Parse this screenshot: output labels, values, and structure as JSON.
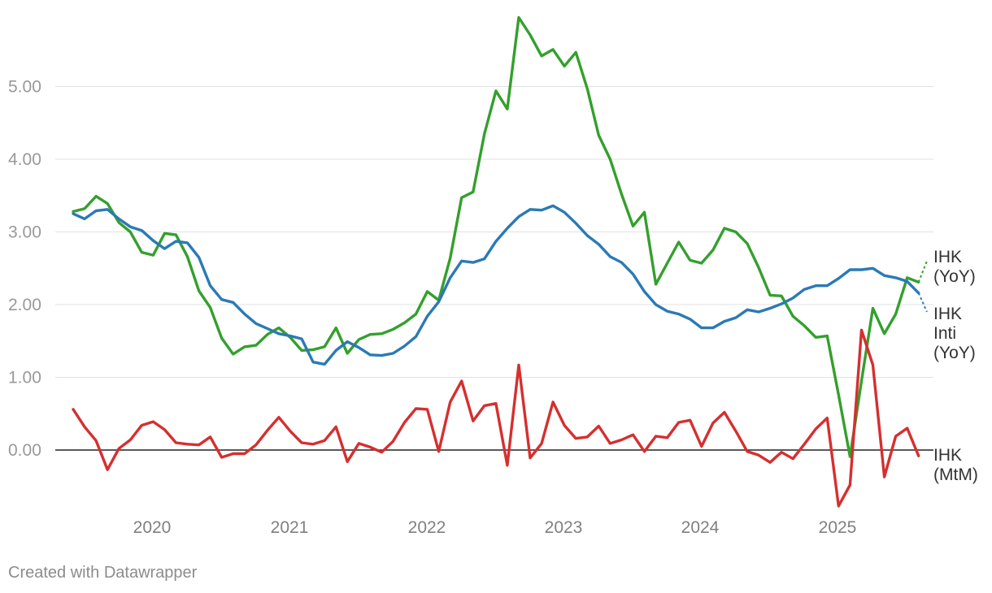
{
  "chart_data": {
    "type": "line",
    "credit": "Created with Datawrapper",
    "y_ticks": [
      "5.00",
      "4.00",
      "3.00",
      "2.00",
      "1.00",
      "0.00"
    ],
    "x_ticks": [
      "2020",
      "2021",
      "2022",
      "2023",
      "2024",
      "2025"
    ],
    "ylim": [
      -0.8,
      5.9
    ],
    "grid": true,
    "legend": "line-end labels on the right",
    "series": [
      {
        "name": "IHK (YoY)",
        "label_lines": [
          "IHK",
          "(YoY)"
        ],
        "color": "#33a02c",
        "projection_end": 2.6,
        "values": [
          3.28,
          3.32,
          3.49,
          3.39,
          3.13,
          3.0,
          2.72,
          2.68,
          2.98,
          2.96,
          2.66,
          2.19,
          1.96,
          1.54,
          1.32,
          1.42,
          1.44,
          1.59,
          1.68,
          1.55,
          1.37,
          1.38,
          1.42,
          1.68,
          1.33,
          1.52,
          1.59,
          1.6,
          1.66,
          1.75,
          1.87,
          2.18,
          2.06,
          2.64,
          3.47,
          3.55,
          4.35,
          4.94,
          4.69,
          5.95,
          5.71,
          5.42,
          5.51,
          5.28,
          5.47,
          4.97,
          4.33,
          4.0,
          3.52,
          3.08,
          3.27,
          2.28,
          2.57,
          2.86,
          2.61,
          2.57,
          2.75,
          3.05,
          3.0,
          2.84,
          2.51,
          2.13,
          2.12,
          1.84,
          1.71,
          1.55,
          1.57,
          0.76,
          -0.09,
          0.95,
          1.95,
          1.6,
          1.87,
          2.37,
          2.31
        ]
      },
      {
        "name": "IHK Inti (YoY)",
        "label_lines": [
          "IHK",
          "Inti",
          "(YoY)"
        ],
        "color": "#2a7ab5",
        "projection_end": 1.9,
        "values": [
          3.25,
          3.18,
          3.29,
          3.31,
          3.18,
          3.07,
          3.02,
          2.88,
          2.77,
          2.87,
          2.85,
          2.65,
          2.26,
          2.07,
          2.03,
          1.87,
          1.74,
          1.67,
          1.6,
          1.57,
          1.53,
          1.21,
          1.18,
          1.37,
          1.49,
          1.41,
          1.31,
          1.3,
          1.33,
          1.43,
          1.56,
          1.84,
          2.04,
          2.37,
          2.6,
          2.58,
          2.63,
          2.87,
          3.05,
          3.21,
          3.31,
          3.3,
          3.36,
          3.27,
          3.12,
          2.95,
          2.83,
          2.66,
          2.58,
          2.42,
          2.18,
          2.0,
          1.91,
          1.87,
          1.8,
          1.68,
          1.68,
          1.77,
          1.82,
          1.93,
          1.9,
          1.95,
          2.01,
          2.09,
          2.21,
          2.26,
          2.26,
          2.36,
          2.48,
          2.48,
          2.5,
          2.4,
          2.37,
          2.32,
          2.16
        ]
      },
      {
        "name": "IHK (MtM)",
        "label_lines": [
          "IHK",
          "(MtM)"
        ],
        "color": "#d62f2f",
        "values": [
          0.56,
          0.32,
          0.13,
          -0.27,
          0.02,
          0.14,
          0.34,
          0.39,
          0.28,
          0.1,
          0.08,
          0.07,
          0.18,
          -0.1,
          -0.05,
          -0.05,
          0.07,
          0.27,
          0.45,
          0.26,
          0.1,
          0.08,
          0.13,
          0.32,
          -0.16,
          0.09,
          0.04,
          -0.03,
          0.12,
          0.38,
          0.57,
          0.56,
          -0.02,
          0.66,
          0.95,
          0.4,
          0.61,
          0.64,
          -0.21,
          1.17,
          -0.11,
          0.09,
          0.66,
          0.34,
          0.16,
          0.18,
          0.33,
          0.09,
          0.14,
          0.21,
          -0.02,
          0.19,
          0.17,
          0.38,
          0.41,
          0.05,
          0.37,
          0.52,
          0.26,
          -0.02,
          -0.07,
          -0.17,
          -0.03,
          -0.12,
          0.08,
          0.29,
          0.44,
          -0.77,
          -0.48,
          1.65,
          1.17,
          -0.37,
          0.19,
          0.3,
          -0.08
        ]
      }
    ]
  }
}
